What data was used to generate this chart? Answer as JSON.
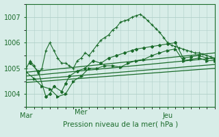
{
  "title": "Pression niveau de la mer( hPa )",
  "bg_color": "#d8ede8",
  "plot_bg_color": "#d8ede8",
  "grid_color": "#b0d0c8",
  "line_color": "#1a6b2a",
  "xlim": [
    0,
    48
  ],
  "ylim": [
    1003.5,
    1007.5
  ],
  "yticks": [
    1004,
    1005,
    1006,
    1007
  ],
  "xtick_pos": [
    0,
    36
  ],
  "xtick_labels": [
    "Mar",
    "Jeu"
  ],
  "mer_x": 14,
  "trend_lines": [
    [
      [
        0,
        48
      ],
      [
        1004.45,
        1005.0
      ]
    ],
    [
      [
        0,
        48
      ],
      [
        1004.55,
        1005.15
      ]
    ],
    [
      [
        0,
        48
      ],
      [
        1004.7,
        1005.4
      ]
    ],
    [
      [
        0,
        48
      ],
      [
        1004.85,
        1005.6
      ]
    ]
  ],
  "line1_x": [
    0,
    1,
    2,
    3,
    4,
    5,
    6,
    7,
    8,
    9,
    10,
    11,
    12,
    13,
    14,
    15,
    16,
    17,
    18,
    19,
    20,
    21,
    22,
    23,
    24,
    25,
    26,
    27,
    28,
    29,
    30,
    31,
    32,
    33,
    34,
    35,
    36,
    37,
    38,
    39,
    40,
    41,
    42,
    43,
    44,
    45,
    46,
    47,
    48
  ],
  "line1_y": [
    1005.0,
    1005.3,
    1005.1,
    1004.8,
    1005.0,
    1005.7,
    1006.0,
    1005.7,
    1005.4,
    1005.2,
    1005.2,
    1005.1,
    1005.0,
    1005.3,
    1005.4,
    1005.6,
    1005.5,
    1005.7,
    1005.9,
    1006.1,
    1006.2,
    1006.3,
    1006.5,
    1006.6,
    1006.8,
    1006.85,
    1006.9,
    1007.0,
    1007.05,
    1007.1,
    1007.0,
    1006.85,
    1006.7,
    1006.55,
    1006.4,
    1006.2,
    1006.0,
    1005.9,
    1005.85,
    1005.8,
    1005.75,
    1005.7,
    1005.65,
    1005.6,
    1005.6,
    1005.55,
    1005.5,
    1005.45,
    1005.4
  ],
  "line2_x": [
    1,
    3,
    5,
    6,
    7,
    9,
    10,
    11,
    13,
    15,
    17,
    19,
    21,
    23,
    25,
    27,
    28,
    30,
    32,
    34,
    36,
    38,
    40,
    42,
    44,
    46,
    48
  ],
  "line2_y": [
    1005.2,
    1004.9,
    1003.9,
    1004.0,
    1004.3,
    1004.1,
    1004.4,
    1004.7,
    1004.9,
    1005.0,
    1005.3,
    1005.2,
    1005.4,
    1005.5,
    1005.6,
    1005.7,
    1005.75,
    1005.8,
    1005.85,
    1005.9,
    1005.95,
    1006.0,
    1005.4,
    1005.45,
    1005.5,
    1005.4,
    1005.35
  ],
  "line3_x": [
    0,
    2,
    4,
    6,
    8,
    10,
    12,
    14,
    16,
    18,
    20,
    22,
    24,
    26,
    28,
    30,
    32,
    34,
    36,
    38,
    40,
    42,
    44,
    46,
    48
  ],
  "line3_y": [
    1004.85,
    1004.6,
    1004.3,
    1004.2,
    1003.9,
    1004.0,
    1004.5,
    1004.7,
    1005.0,
    1005.0,
    1005.1,
    1005.1,
    1005.05,
    1005.2,
    1005.3,
    1005.35,
    1005.5,
    1005.6,
    1005.7,
    1005.75,
    1005.3,
    1005.35,
    1005.4,
    1005.3,
    1005.3
  ]
}
